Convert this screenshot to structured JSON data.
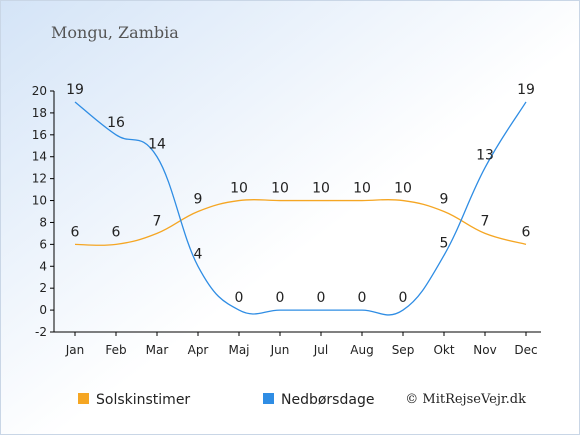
{
  "chart_data": {
    "type": "line",
    "title": "Mongu, Zambia",
    "categories": [
      "Jan",
      "Feb",
      "Mar",
      "Apr",
      "Maj",
      "Jun",
      "Jul",
      "Aug",
      "Sep",
      "Okt",
      "Nov",
      "Dec"
    ],
    "series": [
      {
        "name": "Solskinstimer",
        "color": "#f5a623",
        "values": [
          6,
          6,
          7,
          9,
          10,
          10,
          10,
          10,
          10,
          9,
          7,
          6
        ]
      },
      {
        "name": "Nedbørsdage",
        "color": "#2f8de4",
        "values": [
          19,
          16,
          14,
          4,
          0,
          0,
          0,
          0,
          0,
          5,
          13,
          19
        ]
      }
    ],
    "ylim": [
      -2,
      20
    ],
    "yticks": [
      -2,
      0,
      2,
      4,
      6,
      8,
      10,
      12,
      14,
      16,
      18,
      20
    ],
    "xlabel": "",
    "ylabel": "",
    "grid": false,
    "legend_position": "bottom-left",
    "credit": "© MitRejseVejr.dk"
  }
}
